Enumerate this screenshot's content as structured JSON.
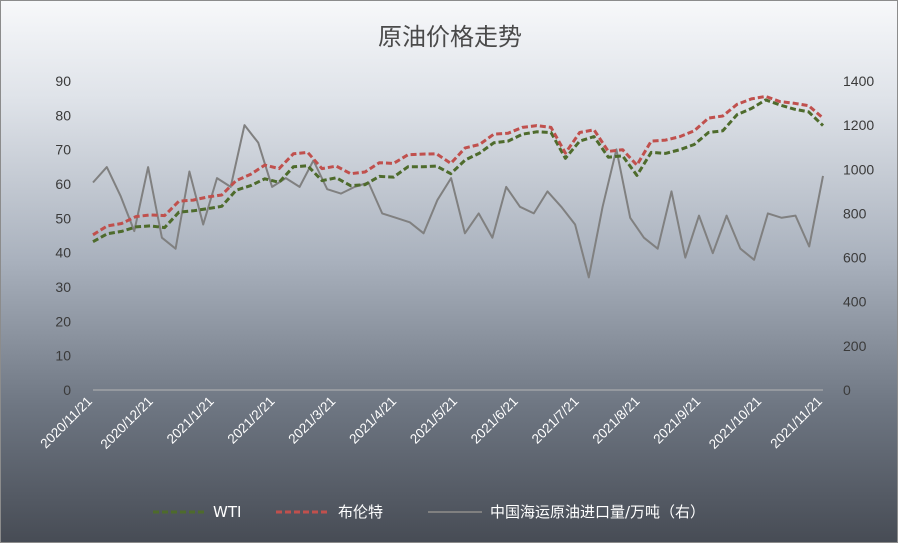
{
  "chart_data": {
    "type": "line",
    "title": "原油价格走势",
    "x_tick_labels": [
      "2020/11/21",
      "2020/12/21",
      "2021/1/21",
      "2021/2/21",
      "2021/3/21",
      "2021/4/21",
      "2021/5/21",
      "2021/6/21",
      "2021/7/21",
      "2021/8/21",
      "2021/9/21",
      "2021/10/21",
      "2021/11/21"
    ],
    "y_left": {
      "ticks": [
        "0",
        "10",
        "20",
        "30",
        "40",
        "50",
        "60",
        "70",
        "80",
        "90"
      ],
      "ylim": [
        0,
        90
      ]
    },
    "y_right": {
      "ticks": [
        "0",
        "200",
        "400",
        "600",
        "800",
        "1000",
        "1200",
        "1400"
      ],
      "ylim": [
        0,
        1400
      ]
    },
    "grid": false,
    "legend_position": "bottom",
    "series": [
      {
        "name": "WTI",
        "axis": "left",
        "style": "dashed",
        "color": "#4e6b2c",
        "values": [
          43.2,
          45.5,
          46.2,
          47.5,
          47.8,
          47.3,
          51.8,
          52.2,
          52.8,
          53.5,
          58.2,
          59.5,
          61.5,
          60.5,
          65.0,
          65.3,
          61.0,
          61.8,
          59.5,
          59.8,
          62.2,
          62.0,
          65.0,
          65.0,
          65.2,
          63.0,
          67.0,
          69.0,
          72.0,
          72.5,
          74.5,
          75.2,
          75.0,
          67.5,
          72.5,
          73.8,
          67.8,
          68.2,
          62.5,
          69.2,
          68.9,
          70.0,
          71.5,
          75.0,
          75.5,
          80.2,
          82.0,
          84.5,
          83.0,
          81.8,
          81.0,
          77.0
        ]
      },
      {
        "name": "布伦特",
        "axis": "left",
        "style": "dashed",
        "color": "#c0504d",
        "values": [
          45.2,
          47.8,
          48.5,
          50.5,
          51.0,
          50.8,
          55.0,
          55.3,
          56.2,
          56.8,
          61.0,
          62.8,
          65.5,
          64.5,
          68.8,
          69.2,
          64.5,
          65.2,
          63.0,
          63.5,
          66.2,
          66.0,
          68.5,
          68.7,
          68.8,
          66.0,
          70.5,
          71.5,
          74.5,
          74.8,
          76.5,
          77.0,
          76.5,
          69.0,
          75.0,
          75.8,
          69.5,
          70.0,
          65.5,
          72.5,
          72.8,
          73.8,
          75.5,
          79.2,
          79.8,
          83.2,
          84.8,
          85.5,
          84.0,
          83.5,
          82.8,
          79.2
        ]
      },
      {
        "name": "中国海运原油进口量/万吨（右）",
        "axis": "right",
        "style": "solid",
        "color": "#808080",
        "values": [
          940,
          1010,
          880,
          720,
          1010,
          690,
          640,
          990,
          750,
          960,
          920,
          1200,
          1120,
          920,
          960,
          920,
          1040,
          910,
          890,
          920,
          940,
          800,
          780,
          760,
          710,
          860,
          960,
          710,
          800,
          690,
          920,
          830,
          800,
          900,
          830,
          750,
          510,
          830,
          1090,
          780,
          690,
          640,
          900,
          600,
          790,
          620,
          790,
          640,
          590,
          800,
          780,
          790,
          650,
          970
        ]
      }
    ]
  }
}
